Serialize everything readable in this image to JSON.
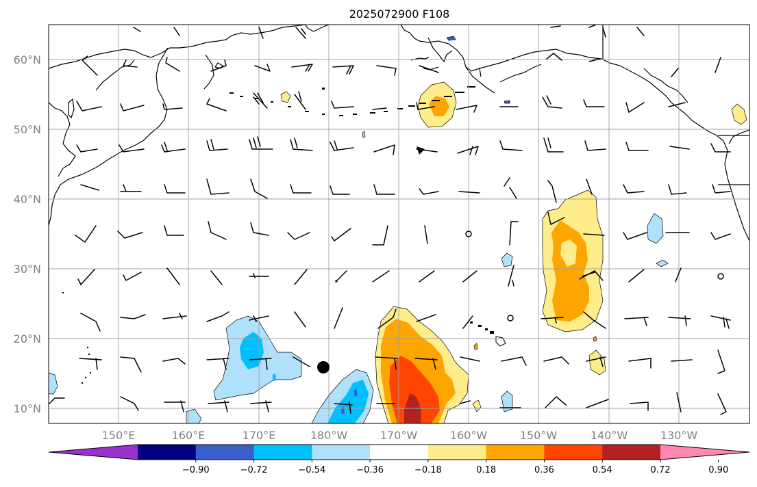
{
  "title": "2025072900 F108",
  "lat_labels": [
    "60°N",
    "50°N",
    "40°N",
    "30°N",
    "20°N",
    "10°N"
  ],
  "lon_labels": [
    "150°E",
    "160°E",
    "170°E",
    "180°W",
    "170°W",
    "160°W",
    "150°W",
    "140°W",
    "130°W"
  ],
  "colorbar": {
    "ticks": [
      "−0.90",
      "−0.72",
      "−0.54",
      "−0.36",
      "−0.18",
      "0.18",
      "0.36",
      "0.54",
      "0.72",
      "0.90"
    ],
    "colors": [
      "#9932cc",
      "#000080",
      "#3a5fcd",
      "#00bfff",
      "#b0e0fa",
      "#ffffff",
      "#ffed8b",
      "#ffa500",
      "#ff4500",
      "#b22222",
      "#ff88b0"
    ]
  },
  "colors": {
    "coast": "#000000",
    "grid": "#a0a0a0",
    "barb": "#000000",
    "marker": "#000000"
  }
}
